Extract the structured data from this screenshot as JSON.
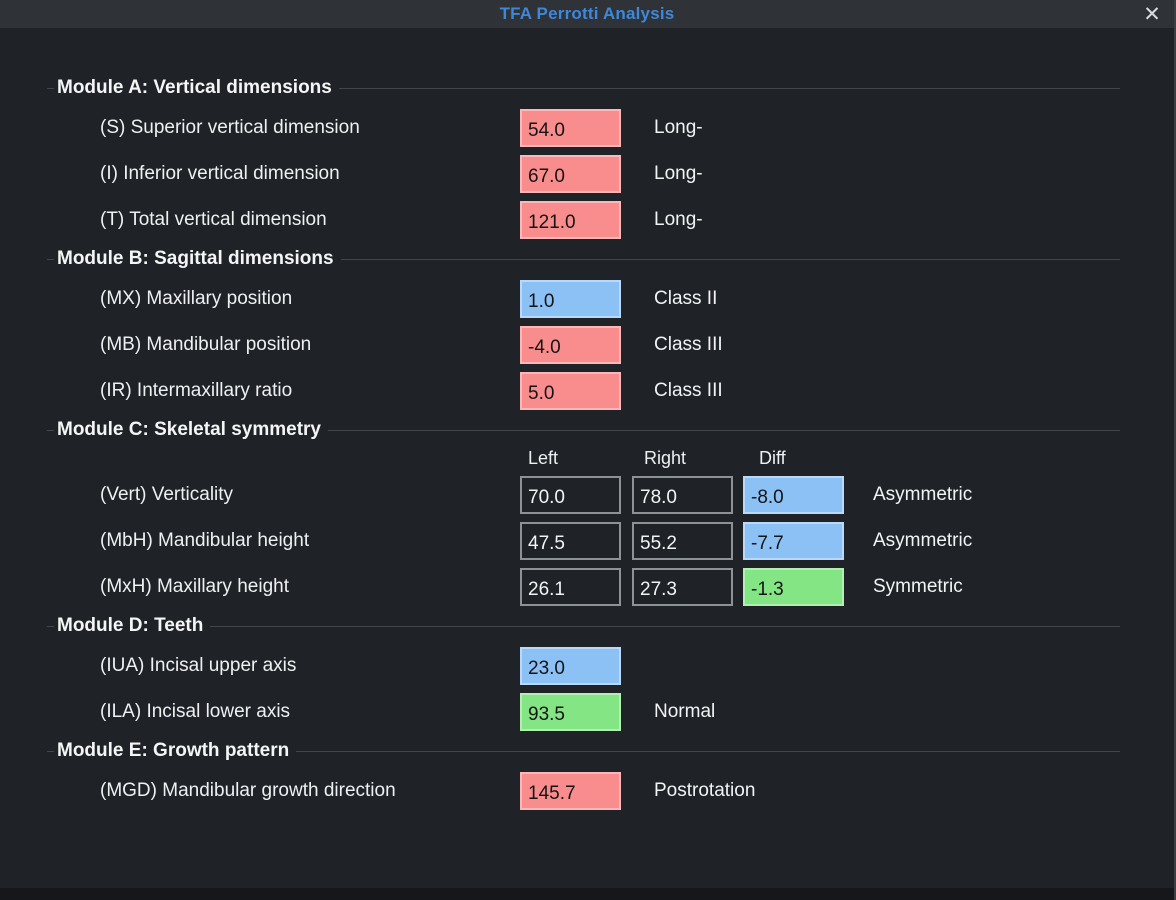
{
  "dialog": {
    "title": "TFA Perrotti Analysis",
    "close_glyph": "✕"
  },
  "colors": {
    "title_accent": "#3d88da",
    "red": "#f98d8d",
    "red_border": "#fcb8b8",
    "blue": "#8cc1f6",
    "blue_border": "#b9d8fa",
    "green": "#84e584",
    "green_border": "#b2efb2"
  },
  "modules": [
    {
      "id": "A",
      "title": "Module A: Vertical dimensions",
      "rows": [
        {
          "label": "(S) Superior vertical dimension",
          "value": "54.0",
          "flag": "red",
          "status": "Long-"
        },
        {
          "label": "(I) Inferior vertical dimension",
          "value": "67.0",
          "flag": "red",
          "status": "Long-"
        },
        {
          "label": "(T) Total vertical dimension",
          "value": "121.0",
          "flag": "red",
          "status": "Long-"
        }
      ]
    },
    {
      "id": "B",
      "title": "Module B: Sagittal dimensions",
      "rows": [
        {
          "label": "(MX) Maxillary position",
          "value": "1.0",
          "flag": "blue",
          "status": "Class II"
        },
        {
          "label": "(MB) Mandibular position",
          "value": "-4.0",
          "flag": "red",
          "status": "Class III"
        },
        {
          "label": "(IR) Intermaxillary ratio",
          "value": "5.0",
          "flag": "red",
          "status": "Class III"
        }
      ]
    },
    {
      "id": "C",
      "title": "Module C: Skeletal symmetry",
      "columns": [
        "Left",
        "Right",
        "Diff"
      ],
      "rows": [
        {
          "label": "(Vert) Verticality",
          "left": "70.0",
          "right": "78.0",
          "diff": "-8.0",
          "diff_flag": "blue",
          "status": "Asymmetric"
        },
        {
          "label": "(MbH) Mandibular height",
          "left": "47.5",
          "right": "55.2",
          "diff": "-7.7",
          "diff_flag": "blue",
          "status": "Asymmetric"
        },
        {
          "label": "(MxH) Maxillary height",
          "left": "26.1",
          "right": "27.3",
          "diff": "-1.3",
          "diff_flag": "green",
          "status": "Symmetric"
        }
      ]
    },
    {
      "id": "D",
      "title": "Module D: Teeth",
      "rows": [
        {
          "label": "(IUA) Incisal upper axis",
          "value": "23.0",
          "flag": "blue",
          "status": ""
        },
        {
          "label": "(ILA) Incisal lower axis",
          "value": "93.5",
          "flag": "green",
          "status": "Normal"
        }
      ]
    },
    {
      "id": "E",
      "title": "Module E: Growth pattern",
      "rows": [
        {
          "label": "(MGD) Mandibular growth direction",
          "value": "145.7",
          "flag": "red",
          "status": "Postrotation"
        }
      ]
    }
  ]
}
